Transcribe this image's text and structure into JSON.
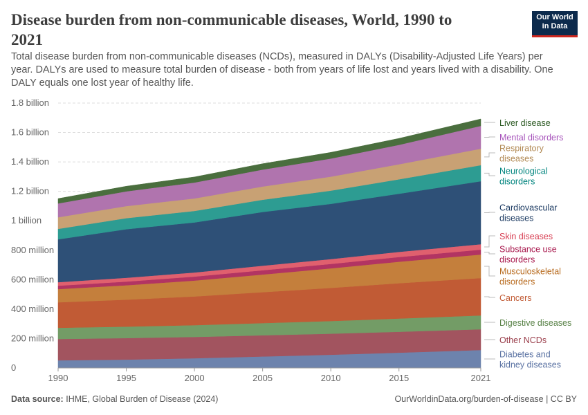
{
  "header": {
    "title": "Disease burden from non-communicable diseases, World, 1990 to 2021",
    "subtitle": "Total disease burden from non-communicable diseases (NCDs), measured in DALYs (Disability-Adjusted Life Years) per year. DALYs are used to measure total burden of disease - both from years of life lost and years lived with a disability. One DALY equals one lost year of healthy life.",
    "logo": "Our World in Data"
  },
  "footer": {
    "source_label": "Data source:",
    "source": "IHME, Global Burden of Disease (2024)",
    "link": "OurWorldinData.org/burden-of-disease | CC BY"
  },
  "chart_data": {
    "type": "area",
    "stacked": true,
    "x": [
      1990,
      1995,
      2000,
      2005,
      2010,
      2015,
      2021
    ],
    "xlim": [
      1990,
      2021
    ],
    "ylim": [
      0,
      1800000000
    ],
    "grid": true,
    "legend": "right (inline labels)",
    "x_ticks": [
      "1990",
      "1995",
      "2000",
      "2005",
      "2010",
      "2015",
      "2021"
    ],
    "y_ticks": [
      {
        "v": 0,
        "label": "0"
      },
      {
        "v": 200000000,
        "label": "200 million"
      },
      {
        "v": 400000000,
        "label": "400 million"
      },
      {
        "v": 600000000,
        "label": "600 million"
      },
      {
        "v": 800000000,
        "label": "800 million"
      },
      {
        "v": 1000000000,
        "label": "1 billion"
      },
      {
        "v": 1200000000,
        "label": "1.2 billion"
      },
      {
        "v": 1400000000,
        "label": "1.4 billion"
      },
      {
        "v": 1600000000,
        "label": "1.6 billion"
      },
      {
        "v": 1800000000,
        "label": "1.8 billion"
      }
    ],
    "series": [
      {
        "name": "Diabetes and kidney diseases",
        "color": "#6d83ad",
        "label_color": "#5b73a3",
        "values": [
          52000000.0,
          57000000.0,
          66000000.0,
          78000000.0,
          90000000.0,
          104000000.0,
          122000000.0
        ]
      },
      {
        "name": "Other NCDs",
        "color": "#a2545f",
        "label_color": "#9a3e4b",
        "values": [
          145000000.0,
          146000000.0,
          145000000.0,
          144000000.0,
          143000000.0,
          142000000.0,
          141000000.0
        ]
      },
      {
        "name": "Digestive diseases",
        "color": "#739c66",
        "label_color": "#578145",
        "values": [
          76000000.0,
          78000000.0,
          80000000.0,
          83000000.0,
          86000000.0,
          90000000.0,
          94000000.0
        ]
      },
      {
        "name": "Cancers",
        "color": "#c15b35",
        "label_color": "#c15b35",
        "values": [
          173000000.0,
          183000000.0,
          195000000.0,
          210000000.0,
          225000000.0,
          240000000.0,
          254000000.0
        ]
      },
      {
        "name": "Musculoskeletal disorders",
        "color": "#c47f3c",
        "label_color": "#b86b1f",
        "values": [
          90000000.0,
          98000000.0,
          108000000.0,
          120000000.0,
          133000000.0,
          146000000.0,
          160000000.0
        ]
      },
      {
        "name": "Substance use disorders",
        "color": "#b23462",
        "label_color": "#a8184d",
        "values": [
          23000000.0,
          25000000.0,
          27000000.0,
          29000000.0,
          30000000.0,
          32000000.0,
          33000000.0
        ]
      },
      {
        "name": "Skin diseases",
        "color": "#e0606e",
        "label_color": "#d73c50",
        "values": [
          24000000.0,
          26000000.0,
          28000000.0,
          31000000.0,
          33000000.0,
          35000000.0,
          37000000.0
        ]
      },
      {
        "name": "Cardiovascular diseases",
        "color": "#2e5077",
        "label_color": "#18375f",
        "values": [
          291000000.0,
          330000000.0,
          340000000.0,
          365000000.0,
          375000000.0,
          395000000.0,
          428000000.0
        ]
      },
      {
        "name": "Neurological disorders",
        "color": "#2d9c92",
        "label_color": "#00847e",
        "values": [
          71000000.0,
          75000000.0,
          78000000.0,
          83000000.0,
          90000000.0,
          98000000.0,
          109000000.0
        ]
      },
      {
        "name": "Respiratory diseases",
        "color": "#c8a174",
        "label_color": "#b28a55",
        "values": [
          79000000.0,
          82000000.0,
          85000000.0,
          90000000.0,
          95000000.0,
          102000000.0,
          112000000.0
        ]
      },
      {
        "name": "Mental disorders",
        "color": "#b074ae",
        "label_color": "#a652ba",
        "values": [
          94000000.0,
          100000000.0,
          108000000.0,
          115000000.0,
          123000000.0,
          132000000.0,
          155000000.0
        ]
      },
      {
        "name": "Liver disease",
        "color": "#4a6e3e",
        "label_color": "#2c5a23",
        "values": [
          33000000.0,
          35000000.0,
          38000000.0,
          40000000.0,
          42000000.0,
          44000000.0,
          47000000.0
        ]
      }
    ],
    "labels": [
      {
        "lines": [
          "Diabetes and",
          "kidney diseases"
        ]
      },
      {
        "lines": [
          "Other NCDs"
        ]
      },
      {
        "lines": [
          "Digestive diseases"
        ]
      },
      {
        "lines": [
          "Cancers"
        ]
      },
      {
        "lines": [
          "Musculoskeletal",
          "disorders"
        ]
      },
      {
        "lines": [
          "Substance use",
          "disorders"
        ]
      },
      {
        "lines": [
          "Skin diseases"
        ]
      },
      {
        "lines": [
          "Cardiovascular",
          "diseases"
        ]
      },
      {
        "lines": [
          "Neurological",
          "disorders"
        ]
      },
      {
        "lines": [
          "Respiratory",
          "diseases"
        ]
      },
      {
        "lines": [
          "Mental disorders"
        ]
      },
      {
        "lines": [
          "Liver disease"
        ]
      }
    ]
  }
}
